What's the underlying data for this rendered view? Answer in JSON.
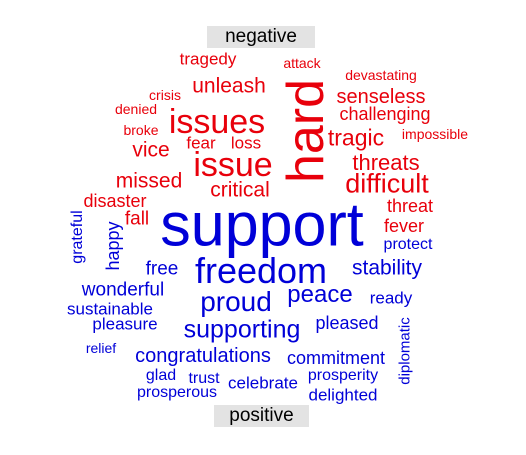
{
  "colors": {
    "negative": "#e8000b",
    "positive": "#0000d8",
    "label_background": "#e3e3e3"
  },
  "labels": {
    "negative": "negative",
    "positive": "positive"
  },
  "words": [
    {
      "text": "negative-group",
      "skip": true
    },
    {
      "text": "tragedy",
      "group": "negative"
    },
    {
      "text": "attack",
      "group": "negative"
    },
    {
      "text": "devastating",
      "group": "negative"
    },
    {
      "text": "unleash",
      "group": "negative"
    },
    {
      "text": "crisis",
      "group": "negative"
    },
    {
      "text": "denied",
      "group": "negative"
    },
    {
      "text": "broke",
      "group": "negative"
    },
    {
      "text": "issues",
      "group": "negative"
    },
    {
      "text": "hard",
      "group": "negative"
    },
    {
      "text": "senseless",
      "group": "negative"
    },
    {
      "text": "challenging",
      "group": "negative"
    },
    {
      "text": "impossible",
      "group": "negative"
    },
    {
      "text": "tragic",
      "group": "negative"
    },
    {
      "text": "fear",
      "group": "negative"
    },
    {
      "text": "loss",
      "group": "negative"
    },
    {
      "text": "vice",
      "group": "negative"
    },
    {
      "text": "issue",
      "group": "negative"
    },
    {
      "text": "threats",
      "group": "negative"
    },
    {
      "text": "missed",
      "group": "negative"
    },
    {
      "text": "critical",
      "group": "negative"
    },
    {
      "text": "difficult",
      "group": "negative"
    },
    {
      "text": "disaster",
      "group": "negative"
    },
    {
      "text": "threat",
      "group": "negative"
    },
    {
      "text": "fall",
      "group": "negative"
    },
    {
      "text": "fever",
      "group": "negative"
    },
    {
      "text": "support",
      "group": "positive"
    },
    {
      "text": "grateful",
      "group": "positive"
    },
    {
      "text": "happy",
      "group": "positive"
    },
    {
      "text": "protect",
      "group": "positive"
    },
    {
      "text": "free",
      "group": "positive"
    },
    {
      "text": "freedom",
      "group": "positive"
    },
    {
      "text": "stability",
      "group": "positive"
    },
    {
      "text": "wonderful",
      "group": "positive"
    },
    {
      "text": "proud",
      "group": "positive"
    },
    {
      "text": "peace",
      "group": "positive"
    },
    {
      "text": "ready",
      "group": "positive"
    },
    {
      "text": "sustainable",
      "group": "positive"
    },
    {
      "text": "pleasure",
      "group": "positive"
    },
    {
      "text": "supporting",
      "group": "positive"
    },
    {
      "text": "pleased",
      "group": "positive"
    },
    {
      "text": "diplomatic",
      "group": "positive"
    },
    {
      "text": "relief",
      "group": "positive"
    },
    {
      "text": "congratulations",
      "group": "positive"
    },
    {
      "text": "commitment",
      "group": "positive"
    },
    {
      "text": "glad",
      "group": "positive"
    },
    {
      "text": "trust",
      "group": "positive"
    },
    {
      "text": "celebrate",
      "group": "positive"
    },
    {
      "text": "prosperity",
      "group": "positive"
    },
    {
      "text": "prosperous",
      "group": "positive"
    },
    {
      "text": "delighted",
      "group": "positive"
    }
  ]
}
